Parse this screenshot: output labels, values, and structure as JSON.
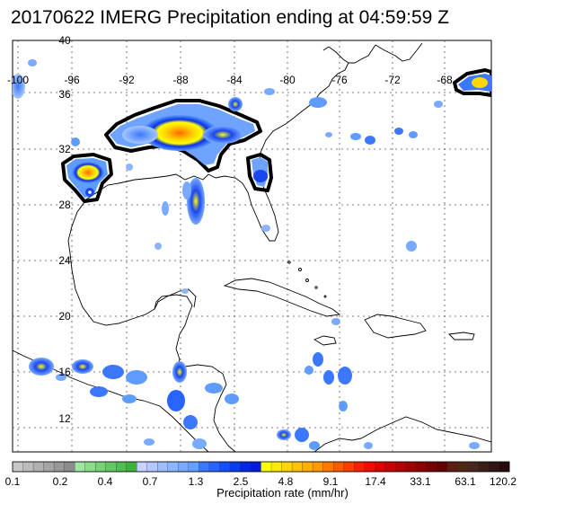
{
  "title": "20170622 IMERG Precipitation ending at 04:59:59 Z",
  "longitude_labels": [
    "-100",
    "-96",
    "-92",
    "-88",
    "-84",
    "-80",
    "-76",
    "-72",
    "-68"
  ],
  "latitude_labels": [
    "40",
    "36",
    "32",
    "28",
    "24",
    "20",
    "16",
    "12"
  ],
  "colorbar": {
    "title": "Precipitation rate (mm/hr)",
    "tick_labels": [
      "0.1",
      "0.2",
      "0.4",
      "0.7",
      "1.3",
      "2.5",
      "4.8",
      "9.1",
      "17.4",
      "33.1",
      "63.1",
      "120.2"
    ],
    "colors": [
      "#c8c8c8",
      "#bcbcbc",
      "#b0b0b0",
      "#a4a4a4",
      "#989898",
      "#8c8c8c",
      "#a0e6a0",
      "#8cdc8c",
      "#78d278",
      "#64c864",
      "#50be50",
      "#3cb43c",
      "#c8d2ff",
      "#b4c8ff",
      "#a0beff",
      "#8cb4ff",
      "#78aaff",
      "#64a0ff",
      "#3c78ff",
      "#2864ff",
      "#1450ff",
      "#0a3cf0",
      "#0028e6",
      "#001edc",
      "#ffff00",
      "#ffeb00",
      "#ffd700",
      "#ffc300",
      "#ffaf00",
      "#ff9b00",
      "#ff7800",
      "#ff5a00",
      "#ff3c00",
      "#ff1e00",
      "#f50a00",
      "#e10000",
      "#c80000",
      "#b40000",
      "#a00000",
      "#8c0000",
      "#780000",
      "#640000",
      "#5a1e14",
      "#502814",
      "#46281e",
      "#3c1e14",
      "#321414",
      "#280a0a"
    ]
  }
}
